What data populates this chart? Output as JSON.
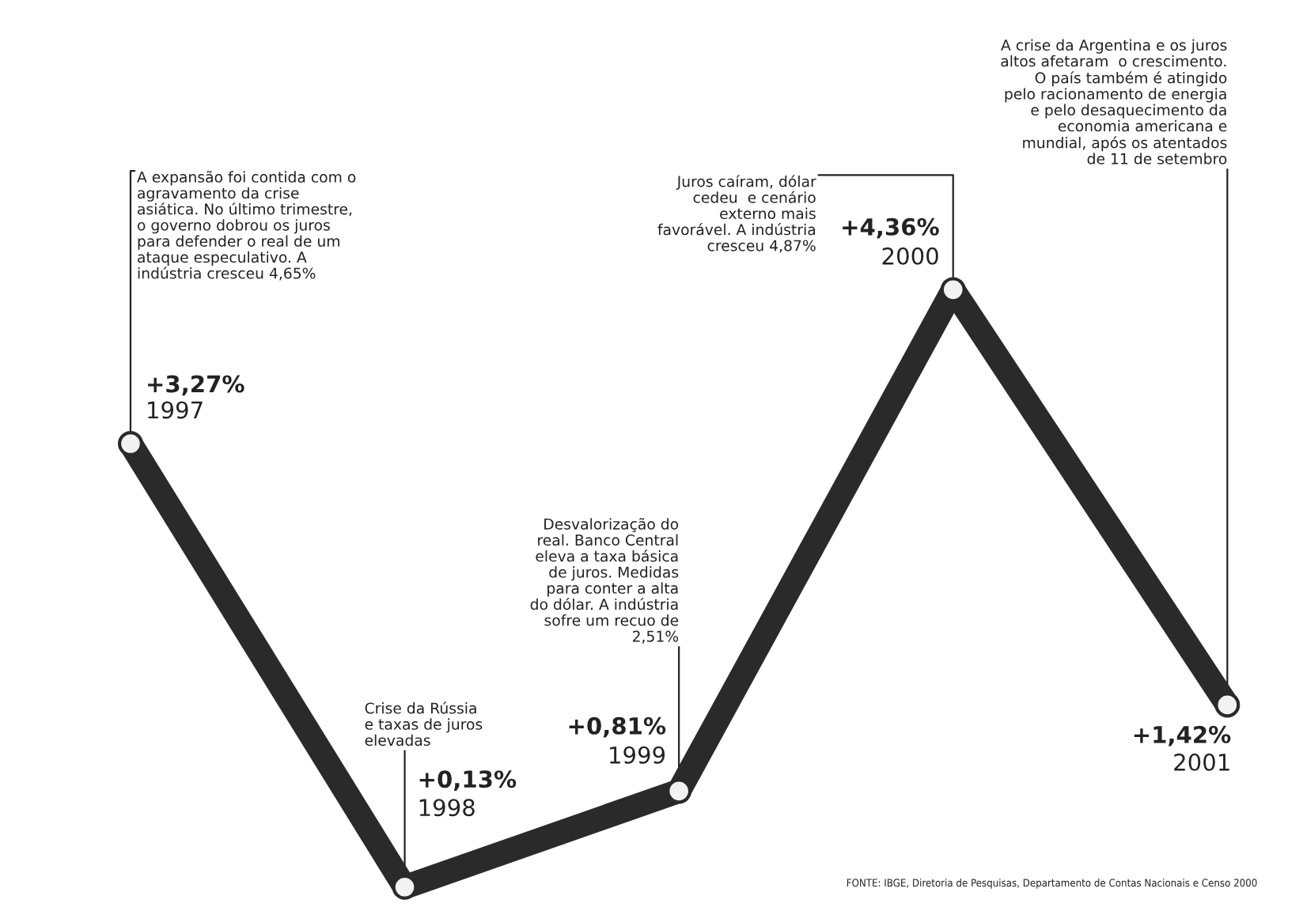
{
  "chart_data": {
    "type": "line",
    "categories": [
      "1997",
      "1998",
      "1999",
      "2000",
      "2001"
    ],
    "series": [
      {
        "color": "#2a2a2a",
        "values": [
          3.27,
          0.13,
          0.81,
          4.36,
          1.42
        ],
        "value_labels": [
          "+3,27%",
          "+0,13%",
          "+0,81%",
          "+4,36%",
          "+1,42%"
        ]
      }
    ],
    "marker": "circle",
    "line_style": "solid",
    "annotations": [
      {
        "text": "A expansão foi contida com o\nagravamento da crise\nasiática. No último trimestre,\no governo dobrou os juros\npara defender o real de um\nataque especulativo. A\nindústria cresceu 4,65%",
        "x": "1997",
        "y": 3.27
      },
      {
        "text": "Crise da Rússia\ne taxas de juros\nelevadas",
        "x": "1998",
        "y": 0.13
      },
      {
        "text": "Desvalorização do\nreal. Banco Central\neleva a taxa básica\nde juros. Medidas\npara conter a alta\ndo dólar. A indústria\nsofre um recuo de\n2,51%",
        "x": "1999",
        "y": 0.81
      },
      {
        "text": "Juros caíram, dólar\ncedeu  e cenário\nexterno mais\nfavorável. A indústria\ncresceu 4,87%",
        "x": "2000",
        "y": 4.36
      },
      {
        "text": "A crise da Argentina e os juros\naltos afetaram  o crescimento.\nO país também é atingido\npelo racionamento de energia\ne pelo desaquecimento da\neconomia americana e\nmundial, após os atentados\nde 11 de setembro",
        "x": "2001",
        "y": 1.42
      },
      "FONTE: IBGE, Diretoria de Pesquisas, Departamento de Contas Nacionais e Censo 2000"
    ]
  }
}
